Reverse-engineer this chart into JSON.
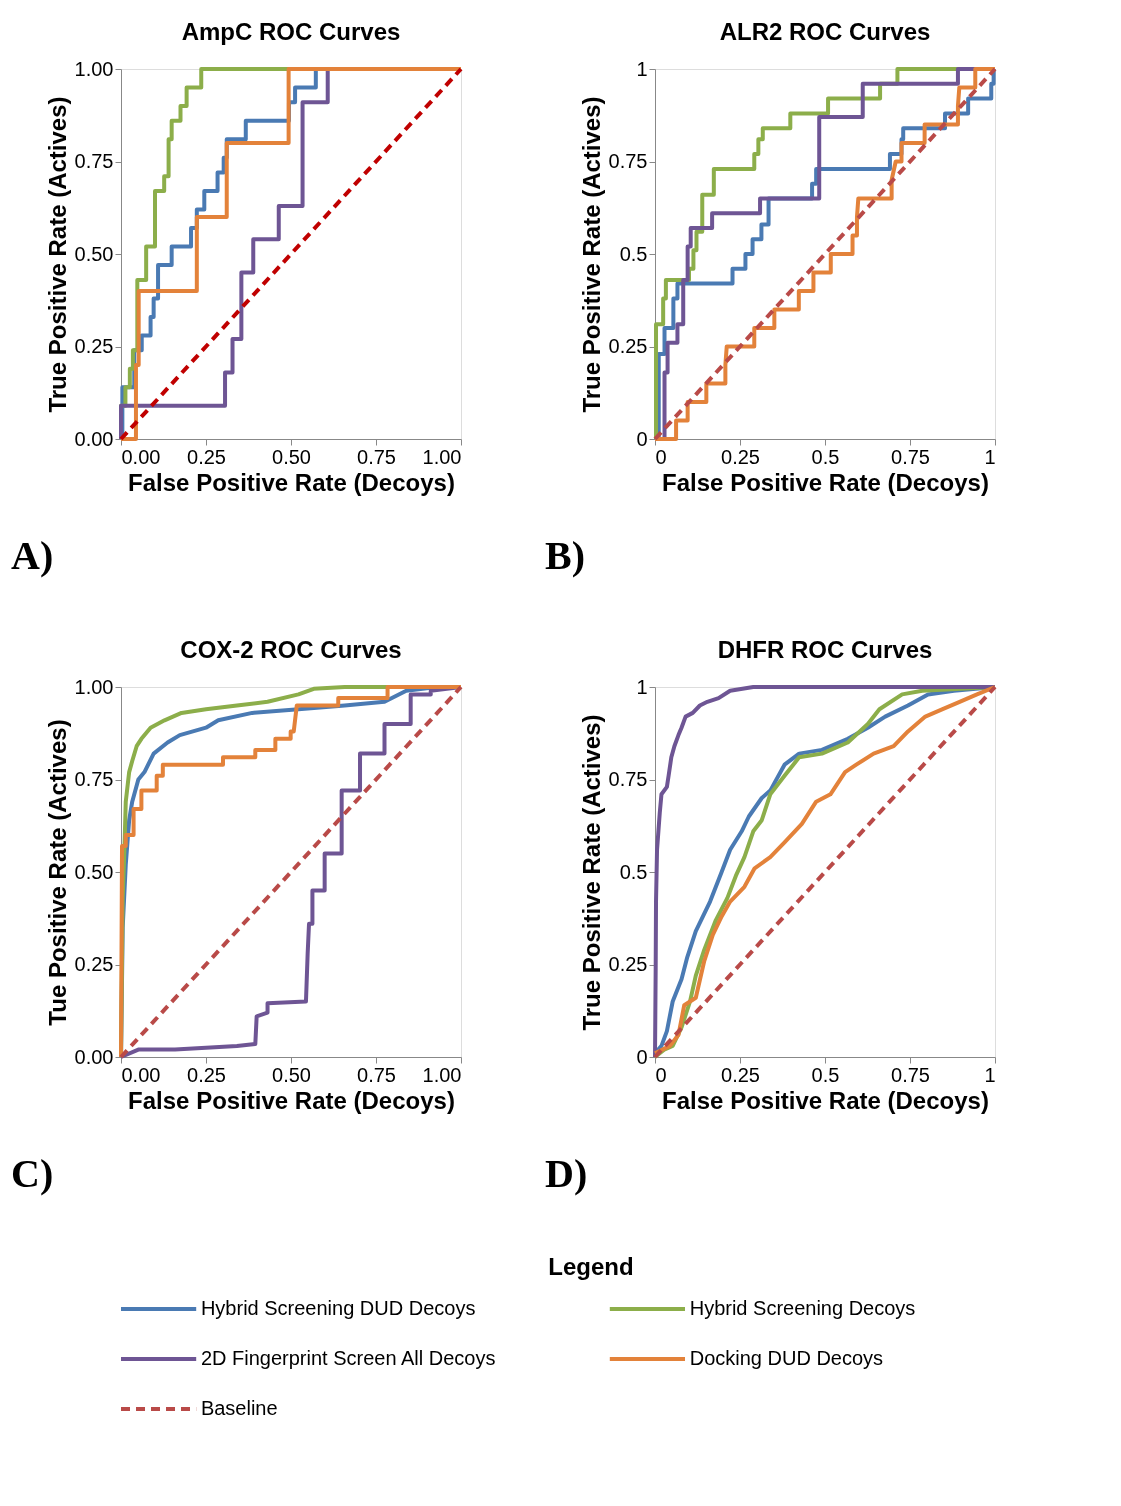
{
  "chart_data": [
    {
      "type": "line",
      "title": "AmpC ROC Curves",
      "xlabel": "False Positive Rate (Decoys)",
      "ylabel": "True Positive Rate (Actives)",
      "annotations": [
        "A)"
      ],
      "xlim": [
        0,
        1
      ],
      "ylim": [
        0,
        1
      ],
      "xticks": [
        {
          "value": 0,
          "label": "0.00"
        },
        {
          "value": 0.25,
          "label": "0.25"
        },
        {
          "value": 0.5,
          "label": "0.50"
        },
        {
          "value": 0.75,
          "label": "0.75"
        },
        {
          "value": 1,
          "label": "1.00"
        }
      ],
      "yticks": [
        {
          "value": 0,
          "label": "0.00"
        },
        {
          "value": 0.25,
          "label": "0.25"
        },
        {
          "value": 0.5,
          "label": "0.50"
        },
        {
          "value": 0.75,
          "label": "0.75"
        },
        {
          "value": 1,
          "label": "1.00"
        }
      ],
      "grid": false,
      "marker": "none",
      "line_style": "solid",
      "legend": "bottom",
      "series": [
        {
          "name": "Hybrid Screening DUD Decoys",
          "color": "#4a7ab3",
          "x": [
            0,
            0.004,
            0.004,
            0.039,
            0.039,
            0.061,
            0.061,
            0.087,
            0.087,
            0.096,
            0.096,
            0.109,
            0.109,
            0.149,
            0.149,
            0.206,
            0.206,
            0.223,
            0.223,
            0.245,
            0.245,
            0.284,
            0.284,
            0.302,
            0.302,
            0.311,
            0.311,
            0.367,
            0.367,
            0.494,
            0.494,
            0.512,
            0.512,
            0.573,
            0.573,
            1
          ],
          "values": [
            0,
            0,
            0.14,
            0.14,
            0.24,
            0.24,
            0.28,
            0.28,
            0.33,
            0.33,
            0.38,
            0.38,
            0.47,
            0.47,
            0.52,
            0.52,
            0.57,
            0.57,
            0.62,
            0.62,
            0.67,
            0.67,
            0.72,
            0.72,
            0.76,
            0.76,
            0.81,
            0.81,
            0.86,
            0.86,
            0.91,
            0.91,
            0.95,
            0.95,
            1,
            1
          ]
        },
        {
          "name": "Hybrid Screening Decoys",
          "color": "#8cae4a",
          "x": [
            0,
            0,
            0.013,
            0.013,
            0.026,
            0.026,
            0.035,
            0.035,
            0.048,
            0.048,
            0.074,
            0.074,
            0.1,
            0.1,
            0.127,
            0.127,
            0.14,
            0.14,
            0.149,
            0.149,
            0.175,
            0.175,
            0.193,
            0.193,
            0.236,
            0.236,
            1
          ],
          "values": [
            0,
            0.09,
            0.09,
            0.14,
            0.14,
            0.19,
            0.19,
            0.24,
            0.24,
            0.43,
            0.43,
            0.52,
            0.52,
            0.67,
            0.67,
            0.71,
            0.71,
            0.81,
            0.81,
            0.86,
            0.86,
            0.9,
            0.9,
            0.95,
            0.95,
            1,
            1
          ]
        },
        {
          "name": "2D Fingerprint Screen All Decoys",
          "color": "#6e5594",
          "x": [
            0,
            0,
            0.306,
            0.306,
            0.328,
            0.328,
            0.354,
            0.354,
            0.389,
            0.389,
            0.464,
            0.464,
            0.534,
            0.534,
            0.608,
            0.608,
            1
          ],
          "values": [
            0,
            0.09,
            0.09,
            0.18,
            0.18,
            0.27,
            0.27,
            0.45,
            0.45,
            0.54,
            0.54,
            0.63,
            0.63,
            0.91,
            0.91,
            1,
            1
          ]
        },
        {
          "name": "Docking DUD Decoys",
          "color": "#e3823a",
          "x": [
            0,
            0.044,
            0.044,
            0.052,
            0.052,
            0.223,
            0.223,
            0.311,
            0.311,
            0.493,
            0.493,
            1
          ],
          "values": [
            0,
            0,
            0.2,
            0.2,
            0.4,
            0.4,
            0.6,
            0.6,
            0.8,
            0.8,
            1,
            1
          ]
        },
        {
          "color": "#c00000",
          "line_style": "dashed",
          "x": [
            0,
            1
          ],
          "values": [
            0,
            1
          ]
        }
      ]
    },
    {
      "type": "line",
      "title": "ALR2 ROC Curves",
      "xlabel": "False Positive Rate (Decoys)",
      "ylabel": "True Positive Rate (Actives)",
      "annotations": [
        "B)"
      ],
      "xlim": [
        0,
        1
      ],
      "ylim": [
        0,
        1
      ],
      "xticks": [
        0,
        0.25,
        0.5,
        0.75,
        1
      ],
      "yticks": [
        0,
        0.25,
        0.5,
        0.75,
        1
      ],
      "grid": false,
      "marker": "none",
      "line_style": "solid",
      "legend": "bottom",
      "series": [
        {
          "name": "Hybrid Screening DUD Decoys",
          "color": "#4a7ab3",
          "x": [
            0,
            0.011,
            0.011,
            0.028,
            0.028,
            0.054,
            0.054,
            0.066,
            0.066,
            0.228,
            0.228,
            0.266,
            0.266,
            0.287,
            0.287,
            0.313,
            0.313,
            0.334,
            0.334,
            0.462,
            0.462,
            0.474,
            0.474,
            0.691,
            0.691,
            0.725,
            0.725,
            0.73,
            0.73,
            0.853,
            0.853,
            0.921,
            0.921,
            0.989,
            0.989,
            0.996,
            0.996,
            1
          ],
          "values": [
            0,
            0,
            0.23,
            0.23,
            0.3,
            0.3,
            0.38,
            0.38,
            0.42,
            0.42,
            0.46,
            0.46,
            0.5,
            0.5,
            0.54,
            0.54,
            0.58,
            0.58,
            0.65,
            0.65,
            0.69,
            0.69,
            0.73,
            0.73,
            0.77,
            0.77,
            0.81,
            0.81,
            0.84,
            0.84,
            0.88,
            0.88,
            0.92,
            0.92,
            0.96,
            0.96,
            1,
            1
          ]
        },
        {
          "name": "Hybrid Screening Decoys",
          "color": "#8cae4a",
          "x": [
            0,
            0.003,
            0.003,
            0.024,
            0.024,
            0.032,
            0.032,
            0.1,
            0.1,
            0.113,
            0.113,
            0.122,
            0.122,
            0.139,
            0.139,
            0.173,
            0.173,
            0.292,
            0.292,
            0.304,
            0.304,
            0.317,
            0.317,
            0.398,
            0.398,
            0.509,
            0.509,
            0.662,
            0.662,
            0.713,
            0.713,
            1
          ],
          "values": [
            0,
            0,
            0.31,
            0.31,
            0.38,
            0.38,
            0.43,
            0.43,
            0.46,
            0.46,
            0.51,
            0.51,
            0.56,
            0.56,
            0.66,
            0.66,
            0.73,
            0.73,
            0.77,
            0.77,
            0.81,
            0.81,
            0.84,
            0.84,
            0.88,
            0.88,
            0.92,
            0.92,
            0.96,
            0.96,
            1,
            1
          ]
        },
        {
          "name": "2D Fingerprint Screen All Decoys",
          "color": "#6e5594",
          "x": [
            0,
            0.028,
            0.028,
            0.037,
            0.037,
            0.066,
            0.066,
            0.083,
            0.083,
            0.096,
            0.096,
            0.105,
            0.105,
            0.168,
            0.168,
            0.309,
            0.309,
            0.483,
            0.483,
            0.611,
            0.611,
            0.891,
            0.891,
            1
          ],
          "values": [
            0,
            0,
            0.18,
            0.18,
            0.26,
            0.26,
            0.31,
            0.31,
            0.43,
            0.43,
            0.52,
            0.52,
            0.57,
            0.57,
            0.61,
            0.61,
            0.65,
            0.65,
            0.87,
            0.87,
            0.96,
            0.96,
            1,
            1
          ]
        },
        {
          "name": "Docking DUD Decoys",
          "color": "#e3823a",
          "x": [
            0,
            0.062,
            0.062,
            0.096,
            0.096,
            0.151,
            0.151,
            0.207,
            0.207,
            0.211,
            0.292,
            0.292,
            0.351,
            0.351,
            0.423,
            0.423,
            0.466,
            0.466,
            0.517,
            0.517,
            0.581,
            0.581,
            0.594,
            0.594,
            0.598,
            0.696,
            0.696,
            0.708,
            0.725,
            0.725,
            0.793,
            0.793,
            0.891,
            0.891,
            0.895,
            0.942,
            0.942,
            1
          ],
          "values": [
            0,
            0,
            0.05,
            0.05,
            0.1,
            0.1,
            0.15,
            0.15,
            0.2,
            0.25,
            0.25,
            0.3,
            0.3,
            0.35,
            0.35,
            0.4,
            0.4,
            0.45,
            0.45,
            0.5,
            0.5,
            0.55,
            0.55,
            0.6,
            0.65,
            0.65,
            0.7,
            0.75,
            0.75,
            0.8,
            0.8,
            0.85,
            0.85,
            0.9,
            0.95,
            0.95,
            1,
            1
          ]
        },
        {
          "name": "Baseline",
          "color": "#b94a48",
          "line_style": "dashed",
          "x": [
            0,
            1
          ],
          "values": [
            0,
            1
          ]
        }
      ]
    },
    {
      "type": "line",
      "title": "COX-2 ROC Curves",
      "xlabel": "False Positive Rate (Decoys)",
      "ylabel": "Tue Positive Rate (Actives)",
      "annotations": [
        "C)"
      ],
      "xlim": [
        0,
        1
      ],
      "ylim": [
        0,
        1
      ],
      "xticks": [
        {
          "value": 0,
          "label": "0.00"
        },
        {
          "value": 0.25,
          "label": "0.25"
        },
        {
          "value": 0.5,
          "label": "0.50"
        },
        {
          "value": 0.75,
          "label": "0.75"
        },
        {
          "value": 1,
          "label": "1.00"
        }
      ],
      "yticks": [
        {
          "value": 0,
          "label": "0.00"
        },
        {
          "value": 0.25,
          "label": "0.25"
        },
        {
          "value": 0.5,
          "label": "0.50"
        },
        {
          "value": 0.75,
          "label": "0.75"
        },
        {
          "value": 1,
          "label": "1.00"
        }
      ],
      "grid": false,
      "marker": "none",
      "line_style": "solid",
      "legend": "bottom",
      "series": [
        {
          "name": "Hybrid Screening DUD Decoys",
          "color": "#4a7ab3",
          "x": [
            0,
            0.005,
            0.014,
            0.024,
            0.033,
            0.051,
            0.069,
            0.096,
            0.137,
            0.173,
            0.25,
            0.286,
            0.386,
            0.522,
            0.658,
            0.775,
            0.839,
            0.929,
            1
          ],
          "values": [
            0,
            0.35,
            0.52,
            0.64,
            0.69,
            0.75,
            0.77,
            0.82,
            0.85,
            0.87,
            0.89,
            0.91,
            0.93,
            0.94,
            0.95,
            0.96,
            0.99,
            1,
            1
          ]
        },
        {
          "name": "Hybrid Screening Decoys",
          "color": "#8cae4a",
          "x": [
            0,
            0.003,
            0.005,
            0.01,
            0.014,
            0.024,
            0.033,
            0.046,
            0.06,
            0.087,
            0.128,
            0.178,
            0.25,
            0.341,
            0.431,
            0.522,
            0.567,
            0.658,
            1
          ],
          "values": [
            0,
            0.26,
            0.43,
            0.56,
            0.69,
            0.77,
            0.8,
            0.84,
            0.86,
            0.89,
            0.91,
            0.93,
            0.94,
            0.95,
            0.96,
            0.98,
            0.995,
            1,
            1
          ]
        },
        {
          "name": "2D Fingerprint Screen All Decoys",
          "color": "#6e5594",
          "x": [
            0,
            0.051,
            0.159,
            0.341,
            0.395,
            0.399,
            0.431,
            0.431,
            0.544,
            0.549,
            0.553,
            0.563,
            0.563,
            0.599,
            0.599,
            0.649,
            0.649,
            0.703,
            0.703,
            0.775,
            0.775,
            0.852,
            0.852,
            0.911,
            0.911,
            1
          ],
          "values": [
            0,
            0.02,
            0.02,
            0.03,
            0.035,
            0.11,
            0.12,
            0.145,
            0.15,
            0.28,
            0.36,
            0.36,
            0.45,
            0.45,
            0.55,
            0.55,
            0.72,
            0.72,
            0.82,
            0.82,
            0.9,
            0.9,
            0.98,
            0.98,
            0.99,
            1
          ]
        },
        {
          "name": "Docking DUD Decoys",
          "color": "#e3823a",
          "x": [
            0,
            0.003,
            0.014,
            0.014,
            0.037,
            0.037,
            0.06,
            0.06,
            0.105,
            0.105,
            0.123,
            0.123,
            0.3,
            0.3,
            0.395,
            0.395,
            0.454,
            0.454,
            0.499,
            0.499,
            0.508,
            0.517,
            0.639,
            0.639,
            0.784,
            0.784,
            1
          ],
          "values": [
            0,
            0.57,
            0.57,
            0.6,
            0.6,
            0.67,
            0.67,
            0.72,
            0.72,
            0.76,
            0.76,
            0.79,
            0.79,
            0.81,
            0.81,
            0.83,
            0.83,
            0.86,
            0.86,
            0.88,
            0.88,
            0.95,
            0.95,
            0.97,
            0.97,
            1,
            1
          ]
        },
        {
          "name": "Baseline",
          "color": "#b94a48",
          "line_style": "dashed",
          "x": [
            0,
            1
          ],
          "values": [
            0,
            1
          ]
        }
      ]
    },
    {
      "type": "line",
      "title": "DHFR ROC Curves",
      "xlabel": "False Positive Rate (Decoys)",
      "ylabel": "True Positive Rate (Actives)",
      "annotations": [
        "D)"
      ],
      "xlim": [
        0,
        1
      ],
      "ylim": [
        0,
        1
      ],
      "xticks": [
        0,
        0.25,
        0.5,
        0.75,
        1
      ],
      "yticks": [
        0,
        0.25,
        0.5,
        0.75,
        1
      ],
      "grid": false,
      "marker": "none",
      "line_style": "solid",
      "legend": "bottom",
      "legend_title": "Legend",
      "series": [
        {
          "name": "Hybrid Screening DUD Decoys",
          "color": "#4a7ab3",
          "x": [
            0,
            0.019,
            0.035,
            0.052,
            0.078,
            0.095,
            0.12,
            0.141,
            0.162,
            0.196,
            0.221,
            0.255,
            0.276,
            0.314,
            0.339,
            0.381,
            0.424,
            0.491,
            0.567,
            0.626,
            0.677,
            0.744,
            0.803,
            0.879,
            1
          ],
          "values": [
            0.01,
            0.03,
            0.07,
            0.15,
            0.21,
            0.27,
            0.34,
            0.38,
            0.42,
            0.5,
            0.56,
            0.61,
            0.65,
            0.7,
            0.72,
            0.79,
            0.82,
            0.83,
            0.86,
            0.89,
            0.92,
            0.95,
            0.98,
            0.99,
            1
          ]
        },
        {
          "name": "Hybrid Screening Decoys",
          "color": "#8cae4a",
          "x": [
            0,
            0.027,
            0.052,
            0.078,
            0.103,
            0.12,
            0.145,
            0.179,
            0.213,
            0.238,
            0.263,
            0.289,
            0.314,
            0.339,
            0.381,
            0.424,
            0.491,
            0.567,
            0.626,
            0.66,
            0.727,
            0.786,
            1
          ],
          "values": [
            0,
            0.02,
            0.03,
            0.08,
            0.15,
            0.22,
            0.29,
            0.37,
            0.43,
            0.49,
            0.54,
            0.61,
            0.64,
            0.71,
            0.76,
            0.81,
            0.82,
            0.85,
            0.9,
            0.94,
            0.98,
            0.99,
            1
          ]
        },
        {
          "name": "2D Fingerprint Screen All Decoys",
          "color": "#6e5594",
          "x": [
            0,
            0.002,
            0.003,
            0.006,
            0.014,
            0.019,
            0.035,
            0.04,
            0.048,
            0.057,
            0.069,
            0.078,
            0.09,
            0.111,
            0.132,
            0.154,
            0.187,
            0.221,
            0.289,
            1
          ],
          "values": [
            0,
            0.24,
            0.42,
            0.56,
            0.66,
            0.71,
            0.73,
            0.76,
            0.81,
            0.84,
            0.87,
            0.89,
            0.92,
            0.93,
            0.95,
            0.96,
            0.97,
            0.99,
            1,
            1
          ]
        },
        {
          "name": "Docking DUD Decoys",
          "color": "#e3823a",
          "x": [
            0,
            0.044,
            0.069,
            0.086,
            0.12,
            0.145,
            0.17,
            0.196,
            0.221,
            0.263,
            0.293,
            0.339,
            0.381,
            0.432,
            0.474,
            0.516,
            0.559,
            0.592,
            0.643,
            0.702,
            0.744,
            0.795,
            0.846,
            0.896,
            0.947,
            1
          ],
          "values": [
            0.01,
            0.03,
            0.06,
            0.14,
            0.16,
            0.26,
            0.33,
            0.38,
            0.42,
            0.46,
            0.51,
            0.54,
            0.58,
            0.63,
            0.69,
            0.71,
            0.77,
            0.79,
            0.82,
            0.84,
            0.88,
            0.92,
            0.94,
            0.96,
            0.98,
            1
          ]
        },
        {
          "name": "Baseline",
          "color": "#b94a48",
          "line_style": "dashed",
          "x": [
            0,
            1
          ],
          "values": [
            0,
            1
          ]
        }
      ]
    }
  ]
}
